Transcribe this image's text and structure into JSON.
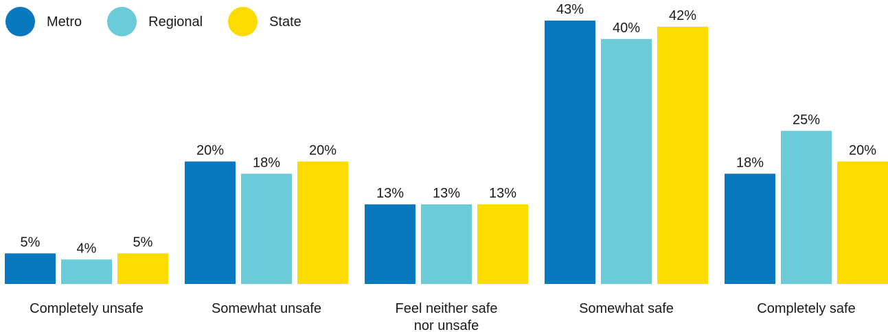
{
  "chart_data": {
    "type": "bar",
    "categories": [
      [
        "Completely unsafe"
      ],
      [
        "Somewhat unsafe"
      ],
      [
        "Feel neither safe",
        "nor unsafe"
      ],
      [
        "Somewhat safe"
      ],
      [
        "Completely safe"
      ]
    ],
    "series": [
      {
        "name": "Metro",
        "color": "#0A78BF",
        "values": [
          5,
          20,
          13,
          43,
          18
        ],
        "labels": [
          "5%",
          "20%",
          "13%",
          "43%",
          "18%"
        ]
      },
      {
        "name": "Regional",
        "color": "#6BCBD9",
        "values": [
          4,
          18,
          13,
          40,
          25
        ],
        "labels": [
          "4%",
          "18%",
          "13%",
          "40%",
          "25%"
        ]
      },
      {
        "name": "State",
        "color": "#FCDB00",
        "values": [
          5,
          20,
          13,
          42,
          20
        ],
        "labels": [
          "5%",
          "20%",
          "13%",
          "42%",
          "20%"
        ]
      }
    ],
    "ylim": [
      0,
      45
    ],
    "legend_position": "top-left",
    "grid": false
  }
}
